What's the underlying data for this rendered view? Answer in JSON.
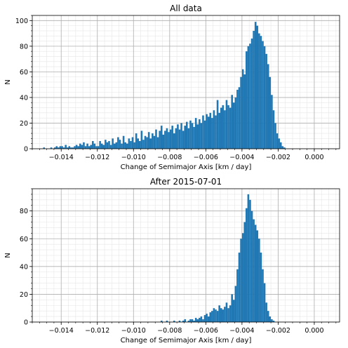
{
  "chart_data": [
    {
      "type": "bar",
      "title": "All data",
      "xlabel": "Change of Semimajor Axis [km / day]",
      "ylabel": "N",
      "xlim": [
        -0.0156,
        0.0014
      ],
      "ylim": [
        0,
        104
      ],
      "xticks": [
        "-0.014",
        "-0.012",
        "-0.010",
        "-0.008",
        "-0.006",
        "-0.004",
        "-0.002",
        "0.000"
      ],
      "yticks": [
        "0",
        "20",
        "40",
        "60",
        "80",
        "100"
      ],
      "grid": true,
      "bar_color": "#1f77b4",
      "bin_start": -0.015,
      "bin_width": 0.0001,
      "values": [
        1,
        0,
        0,
        0,
        1,
        0,
        1,
        2,
        1,
        2,
        2,
        1,
        3,
        1,
        2,
        1,
        1,
        2,
        3,
        2,
        4,
        3,
        5,
        2,
        4,
        2,
        3,
        6,
        4,
        2,
        2,
        6,
        4,
        3,
        7,
        5,
        6,
        3,
        8,
        4,
        5,
        9,
        7,
        4,
        10,
        5,
        4,
        8,
        6,
        9,
        5,
        12,
        8,
        6,
        14,
        7,
        10,
        9,
        13,
        8,
        12,
        10,
        15,
        9,
        14,
        18,
        11,
        14,
        16,
        13,
        15,
        18,
        12,
        16,
        19,
        15,
        20,
        14,
        18,
        21,
        16,
        22,
        20,
        17,
        24,
        19,
        23,
        20,
        26,
        22,
        27,
        25,
        28,
        24,
        30,
        26,
        38,
        28,
        32,
        34,
        30,
        38,
        34,
        32,
        42,
        36,
        40,
        46,
        48,
        56,
        62,
        58,
        76,
        80,
        82,
        86,
        92,
        99,
        96,
        90,
        88,
        84,
        80,
        74,
        66,
        56,
        42,
        30,
        20,
        12,
        8,
        5,
        2,
        1,
        0,
        0
      ]
    },
    {
      "type": "bar",
      "title": "After 2015-07-01",
      "xlabel": "Change of Semimajor Axis [km / day]",
      "ylabel": "N",
      "xlim": [
        -0.0156,
        0.0014
      ],
      "ylim": [
        0,
        96
      ],
      "xticks": [
        "-0.014",
        "-0.012",
        "-0.010",
        "-0.008",
        "-0.006",
        "-0.004",
        "-0.002",
        "0.000"
      ],
      "yticks": [
        "0",
        "20",
        "40",
        "60",
        "80"
      ],
      "grid": true,
      "bar_color": "#1f77b4",
      "bin_start": -0.015,
      "bin_width": 0.0001,
      "values": [
        0,
        0,
        0,
        0,
        0,
        0,
        0,
        0,
        0,
        0,
        0,
        0,
        0,
        0,
        0,
        0,
        0,
        0,
        0,
        0,
        0,
        0,
        0,
        0,
        0,
        0,
        0,
        0,
        0,
        0,
        0,
        0,
        0,
        0,
        0,
        0,
        0,
        0,
        0,
        0,
        0,
        0,
        0,
        0,
        0,
        0,
        0,
        0,
        0,
        0,
        0,
        0,
        0,
        0,
        0,
        0,
        0,
        0,
        0,
        0,
        0,
        0,
        0,
        0,
        0,
        1,
        0,
        0,
        1,
        0,
        0,
        0,
        1,
        0,
        0,
        1,
        0,
        1,
        2,
        0,
        1,
        2,
        2,
        1,
        3,
        2,
        3,
        4,
        2,
        5,
        6,
        4,
        7,
        8,
        10,
        9,
        8,
        12,
        10,
        9,
        11,
        14,
        10,
        12,
        20,
        16,
        26,
        38,
        50,
        60,
        64,
        72,
        82,
        92,
        88,
        80,
        74,
        70,
        66,
        60,
        50,
        38,
        28,
        14,
        8,
        4,
        2,
        1,
        0,
        0,
        0,
        0
      ]
    }
  ]
}
